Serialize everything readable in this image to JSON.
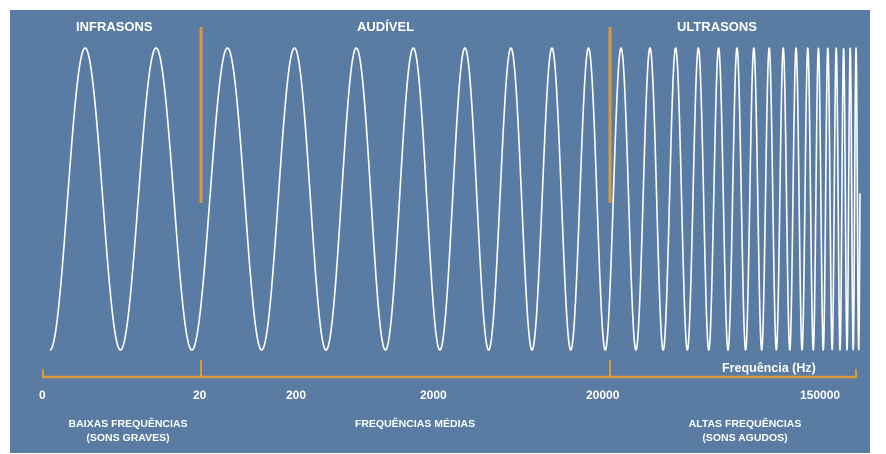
{
  "regions": {
    "left": "INFRASONS",
    "middle": "AUDÍVEL",
    "right": "ULTRASONS"
  },
  "axis": {
    "title": "Frequência (Hz)",
    "ticks": [
      "0",
      "20",
      "200",
      "2000",
      "20000",
      "150000"
    ]
  },
  "bands": {
    "low": {
      "line1": "BAIXAS FREQUÊNCIAS",
      "line2": "(SONS GRAVES)"
    },
    "mid": {
      "line1": "FREQUÊNCIAS MÉDIAS"
    },
    "high": {
      "line1": "ALTAS FREQUÊNCIAS",
      "line2": "(SONS AGUDOS)"
    }
  },
  "colors": {
    "background": "#5a7ca3",
    "wave": "#ffffff",
    "accent": "#d99a3a",
    "page": "#ffffff"
  }
}
